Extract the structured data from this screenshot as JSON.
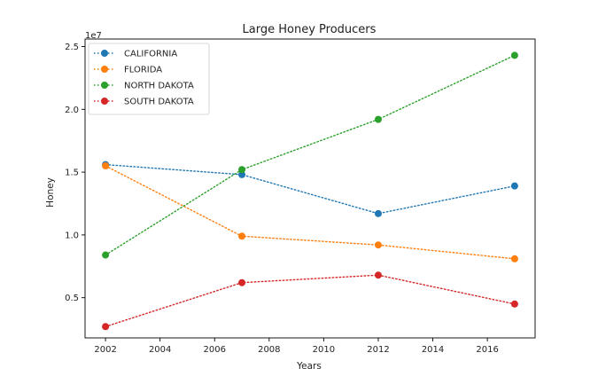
{
  "chart_data": {
    "type": "line",
    "title": "Large Honey Producers",
    "xlabel": "Years",
    "ylabel": "Honey",
    "y_offset_label": "1e7",
    "xlim": [
      2001.25,
      2017.75
    ],
    "ylim": [
      1.8,
      25.6
    ],
    "x_ticks": [
      2002,
      2004,
      2006,
      2008,
      2010,
      2012,
      2014,
      2016
    ],
    "x_tick_labels": [
      "2002",
      "2004",
      "2006",
      "2008",
      "2010",
      "2012",
      "2014",
      "2016"
    ],
    "y_ticks": [
      5,
      10,
      15,
      20,
      25
    ],
    "y_tick_labels": [
      "0.5",
      "1.0",
      "1.5",
      "2.0",
      "2.5"
    ],
    "y_scale_note": "values in units of 1e6 (axis multiplier 1e7)",
    "grid": false,
    "line_style": "dotted",
    "marker": "circle",
    "legend_position": "top-left",
    "x": [
      2002,
      2007,
      2012,
      2017
    ],
    "series": [
      {
        "name": "CALIFORNIA",
        "color": "#1f77b4",
        "values": [
          15.6,
          14.8,
          11.7,
          13.9
        ]
      },
      {
        "name": "FLORIDA",
        "color": "#ff7f0e",
        "values": [
          15.5,
          9.9,
          9.2,
          8.1
        ]
      },
      {
        "name": "NORTH DAKOTA",
        "color": "#2ca02c",
        "values": [
          8.4,
          15.2,
          19.2,
          24.3
        ]
      },
      {
        "name": "SOUTH DAKOTA",
        "color": "#d62728",
        "values": [
          2.7,
          6.2,
          6.8,
          4.5
        ]
      }
    ]
  }
}
